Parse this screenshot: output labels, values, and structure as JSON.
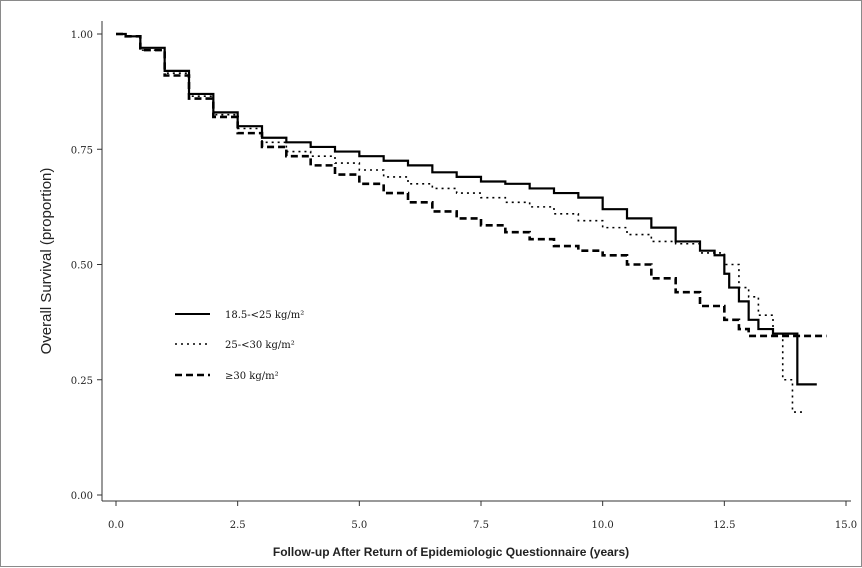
{
  "chart_data": {
    "type": "line",
    "title": "",
    "xlabel": "Follow-up After Return of Epidemiologic Questionnaire (years)",
    "ylabel": "Overall Survival (proportion)",
    "xlim": [
      0,
      15
    ],
    "ylim": [
      0,
      1
    ],
    "x_ticks": [
      "0.0",
      "2.5",
      "5.0",
      "7.5",
      "10.0",
      "12.5",
      "15.0"
    ],
    "y_ticks": [
      "0.00",
      "0.25",
      "0.50",
      "0.75",
      "1.00"
    ],
    "grid": false,
    "legend_position": "left-middle",
    "step": true,
    "series": [
      {
        "name": "18.5-<25 kg/m²",
        "line_style": "solid",
        "x": [
          0,
          0.2,
          0.5,
          1,
          1.5,
          2,
          2.5,
          3,
          3.5,
          4,
          4.5,
          5,
          5.5,
          6,
          6.5,
          7,
          7.5,
          8,
          8.5,
          9,
          9.5,
          10,
          10.5,
          11,
          11.5,
          12,
          12.3,
          12.5,
          12.6,
          12.8,
          13,
          13.2,
          13.5,
          13.9,
          14,
          14.4
        ],
        "y": [
          1.0,
          0.995,
          0.97,
          0.92,
          0.87,
          0.83,
          0.8,
          0.775,
          0.765,
          0.755,
          0.745,
          0.735,
          0.725,
          0.715,
          0.7,
          0.69,
          0.68,
          0.675,
          0.665,
          0.655,
          0.645,
          0.62,
          0.6,
          0.58,
          0.55,
          0.53,
          0.52,
          0.48,
          0.45,
          0.42,
          0.38,
          0.36,
          0.35,
          0.35,
          0.24,
          0.24
        ]
      },
      {
        "name": "25-<30 kg/m²",
        "line_style": "dotted",
        "x": [
          0,
          0.2,
          0.5,
          1,
          1.5,
          2,
          2.5,
          3,
          3.5,
          4,
          4.5,
          5,
          5.5,
          6,
          6.5,
          7,
          7.5,
          8,
          8.5,
          9,
          9.5,
          10,
          10.5,
          11,
          11.5,
          12,
          12.5,
          12.8,
          13,
          13.2,
          13.5,
          13.7,
          13.9,
          14.1
        ],
        "y": [
          1.0,
          0.995,
          0.965,
          0.915,
          0.865,
          0.825,
          0.795,
          0.765,
          0.745,
          0.735,
          0.72,
          0.705,
          0.69,
          0.675,
          0.665,
          0.655,
          0.645,
          0.635,
          0.625,
          0.61,
          0.595,
          0.58,
          0.565,
          0.55,
          0.545,
          0.525,
          0.5,
          0.45,
          0.43,
          0.39,
          0.35,
          0.25,
          0.18,
          0.18
        ]
      },
      {
        "name": "≥30 kg/m²",
        "line_style": "dashed",
        "x": [
          0,
          0.2,
          0.5,
          1,
          1.5,
          2,
          2.5,
          3,
          3.5,
          4,
          4.5,
          5,
          5.5,
          6,
          6.5,
          7,
          7.5,
          8,
          8.5,
          9,
          9.5,
          10,
          10.5,
          11,
          11.5,
          12,
          12.5,
          12.8,
          13,
          13.5,
          14,
          14.6
        ],
        "y": [
          1.0,
          0.995,
          0.965,
          0.91,
          0.86,
          0.82,
          0.785,
          0.755,
          0.735,
          0.715,
          0.695,
          0.675,
          0.655,
          0.635,
          0.615,
          0.6,
          0.585,
          0.57,
          0.555,
          0.54,
          0.53,
          0.52,
          0.5,
          0.47,
          0.44,
          0.41,
          0.38,
          0.36,
          0.345,
          0.345,
          0.345,
          0.345
        ]
      }
    ]
  },
  "legend": {
    "items": [
      {
        "label": "18.5-<25 kg/m²"
      },
      {
        "label": "25-<30 kg/m²"
      },
      {
        "label": "≥30 kg/m²"
      }
    ]
  },
  "axes": {
    "xlabel": "Follow-up After Return of Epidemiologic Questionnaire (years)",
    "ylabel": "Overall Survival (proportion)"
  }
}
